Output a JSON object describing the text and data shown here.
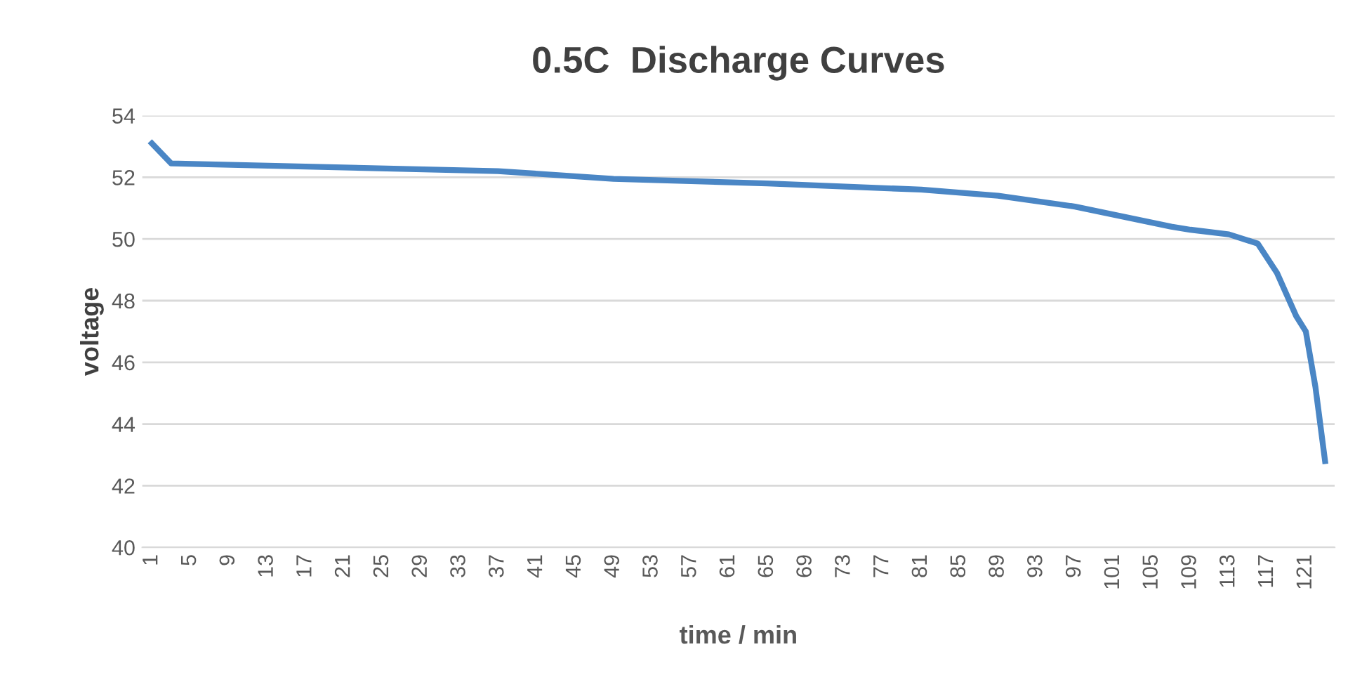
{
  "chart_data": {
    "type": "line",
    "title": "0.5C  Discharge Curves",
    "xlabel": "time / min",
    "ylabel": "voltage",
    "x": [
      1,
      3,
      37,
      49,
      65,
      81,
      89,
      97,
      107,
      109,
      113,
      116,
      118,
      120,
      121,
      122,
      123
    ],
    "series": [
      {
        "color": "#4a86c5",
        "values": [
          53.1,
          52.45,
          52.2,
          51.95,
          51.8,
          51.6,
          51.4,
          51.05,
          50.4,
          50.3,
          50.15,
          49.85,
          48.9,
          47.5,
          47.0,
          45.2,
          42.8
        ]
      }
    ],
    "xlim": [
      0,
      124
    ],
    "xticks": [
      1,
      5,
      9,
      13,
      17,
      21,
      25,
      29,
      33,
      37,
      41,
      45,
      49,
      53,
      57,
      61,
      65,
      69,
      73,
      77,
      81,
      85,
      89,
      93,
      97,
      101,
      105,
      109,
      113,
      117,
      121
    ],
    "ylim": [
      40,
      54
    ],
    "yticks": [
      40,
      42,
      44,
      46,
      48,
      50,
      52,
      54
    ],
    "grid": "y",
    "legend": false,
    "marker": "none",
    "line_style": "solid"
  }
}
